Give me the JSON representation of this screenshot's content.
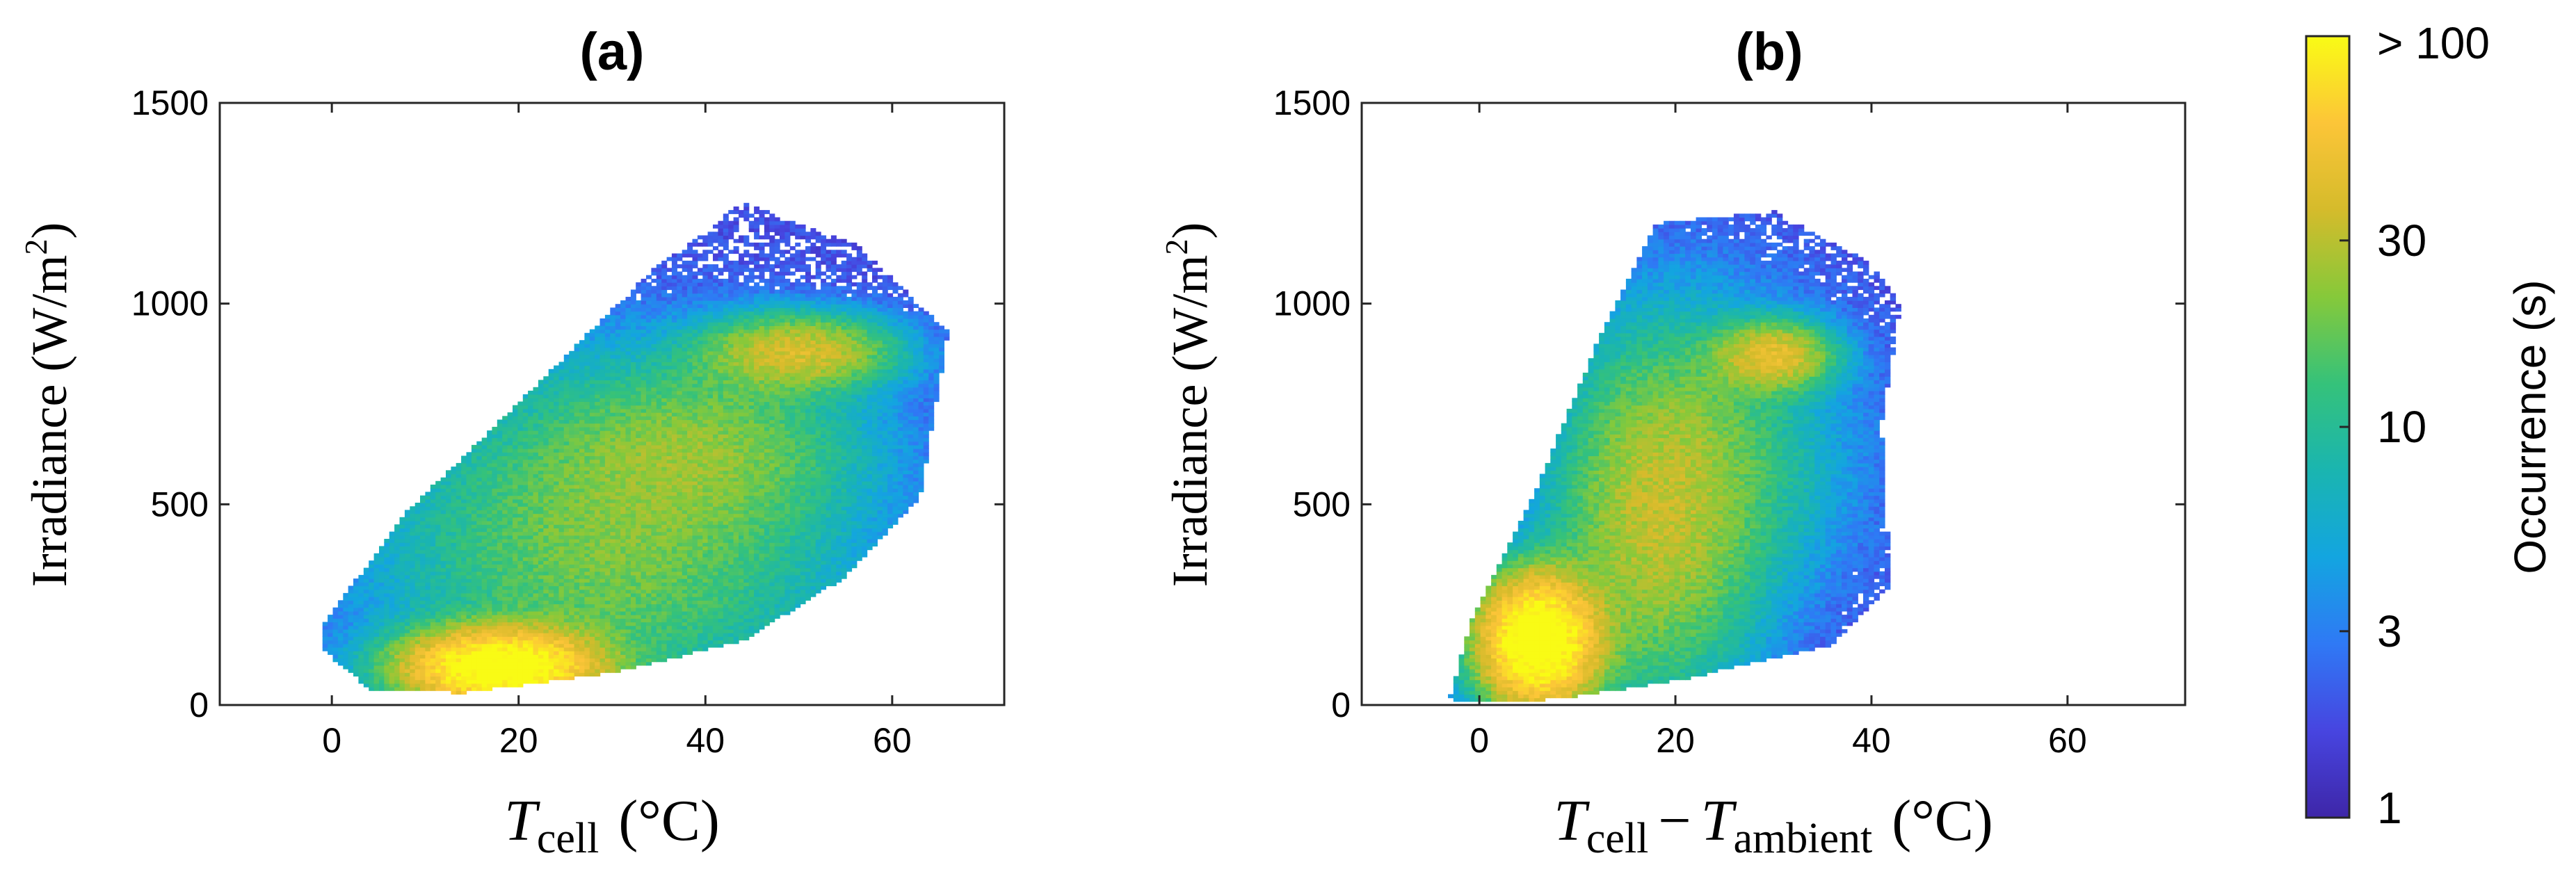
{
  "chart_data": [
    {
      "type": "heatmap",
      "panel_label": "(a)",
      "xlabel": {
        "main": "T",
        "sub": "cell",
        "unit": "(°C)"
      },
      "ylabel": "Irradiance (W/m",
      "ylabel_sup": "2",
      "ylabel_close": ")",
      "xlim": [
        -12,
        72
      ],
      "ylim": [
        0,
        1500
      ],
      "xticks": [
        0,
        20,
        40,
        60
      ],
      "xtick_labels": [
        "0",
        "20",
        "40",
        "60"
      ],
      "yticks": [
        0,
        500,
        1000,
        1500
      ],
      "ytick_labels": [
        "0",
        "500",
        "1000",
        "1500"
      ],
      "density_lobes": [
        {
          "x": 18,
          "y": 95,
          "sx": 6,
          "sy": 55,
          "peak": 130
        },
        {
          "x": 30,
          "y": 400,
          "sx": 14,
          "sy": 240,
          "peak": 18
        },
        {
          "x": 50,
          "y": 880,
          "sx": 6,
          "sy": 55,
          "peak": 35
        },
        {
          "x": 40,
          "y": 650,
          "sx": 10,
          "sy": 130,
          "peak": 14
        }
      ],
      "cloud_envelope": [
        [
          -1,
          200
        ],
        [
          8,
          480
        ],
        [
          22,
          800
        ],
        [
          35,
          1100
        ],
        [
          44,
          1250
        ],
        [
          56,
          1150
        ],
        [
          66,
          930
        ],
        [
          63,
          520
        ],
        [
          55,
          320
        ],
        [
          44,
          160
        ],
        [
          30,
          80
        ],
        [
          14,
          30
        ],
        [
          4,
          40
        ],
        [
          -1,
          140
        ]
      ]
    },
    {
      "type": "heatmap",
      "panel_label": "(b)",
      "xlabel": {
        "main": "T",
        "sub": "cell",
        "minus": "−",
        "main2": "T",
        "sub2": "ambient",
        "unit": "(°C)"
      },
      "ylabel": "Irradiance (W/m",
      "ylabel_sup": "2",
      "ylabel_close": ")",
      "xlim": [
        -12,
        72
      ],
      "ylim": [
        0,
        1500
      ],
      "xticks": [
        0,
        20,
        40,
        60
      ],
      "xtick_labels": [
        "0",
        "20",
        "40",
        "60"
      ],
      "yticks": [
        0,
        500,
        1000,
        1500
      ],
      "ytick_labels": [
        "0",
        "500",
        "1000",
        "1500"
      ],
      "density_lobes": [
        {
          "x": 6,
          "y": 160,
          "sx": 3.5,
          "sy": 95,
          "peak": 140
        },
        {
          "x": 18,
          "y": 450,
          "sx": 6,
          "sy": 260,
          "peak": 25
        },
        {
          "x": 30,
          "y": 870,
          "sx": 3.5,
          "sy": 50,
          "peak": 40
        },
        {
          "x": 24,
          "y": 620,
          "sx": 8,
          "sy": 220,
          "peak": 10
        }
      ],
      "cloud_envelope": [
        [
          -3,
          20
        ],
        [
          -1,
          200
        ],
        [
          6,
          550
        ],
        [
          12,
          900
        ],
        [
          18,
          1200
        ],
        [
          30,
          1230
        ],
        [
          40,
          1100
        ],
        [
          43,
          1000
        ],
        [
          41,
          700
        ],
        [
          42,
          300
        ],
        [
          36,
          150
        ],
        [
          20,
          60
        ],
        [
          8,
          15
        ],
        [
          -2,
          5
        ]
      ]
    }
  ],
  "colorbar": {
    "label": "Occurrence (s)",
    "scale": "log",
    "range": [
      1,
      100
    ],
    "ticks": [
      1,
      3,
      10,
      30,
      100
    ],
    "tick_labels": [
      "1",
      "3",
      "10",
      "30",
      "> 100"
    ],
    "colors": [
      "#3e26a8",
      "#4745e0",
      "#2f79f5",
      "#13a5e0",
      "#1ab5b0",
      "#35c27a",
      "#86c93a",
      "#d5bb2b",
      "#fcc538",
      "#f9fb15"
    ]
  }
}
